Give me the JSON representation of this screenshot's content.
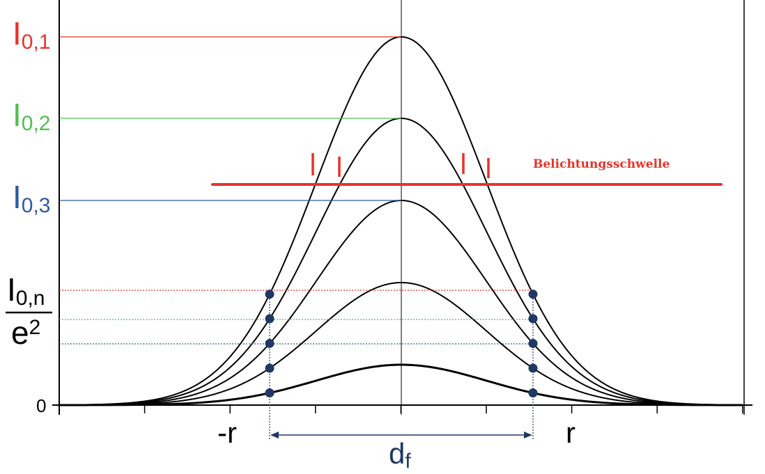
{
  "levels": [
    {
      "symbol": "I",
      "subscript": "0,1"
    },
    {
      "symbol": "I",
      "subscript": "0,2"
    },
    {
      "symbol": "I",
      "subscript": "0,3"
    }
  ],
  "fraction": {
    "numerator": "I",
    "numerator_subscript": "0,n",
    "denominator": "e",
    "denominator_superscript": "2"
  },
  "axis": {
    "origin": "0",
    "minus_r": "-r",
    "r": "r"
  },
  "diameter": {
    "symbol": "d",
    "subscript": "f"
  },
  "threshold_label": "Belichtungsschwelle"
}
